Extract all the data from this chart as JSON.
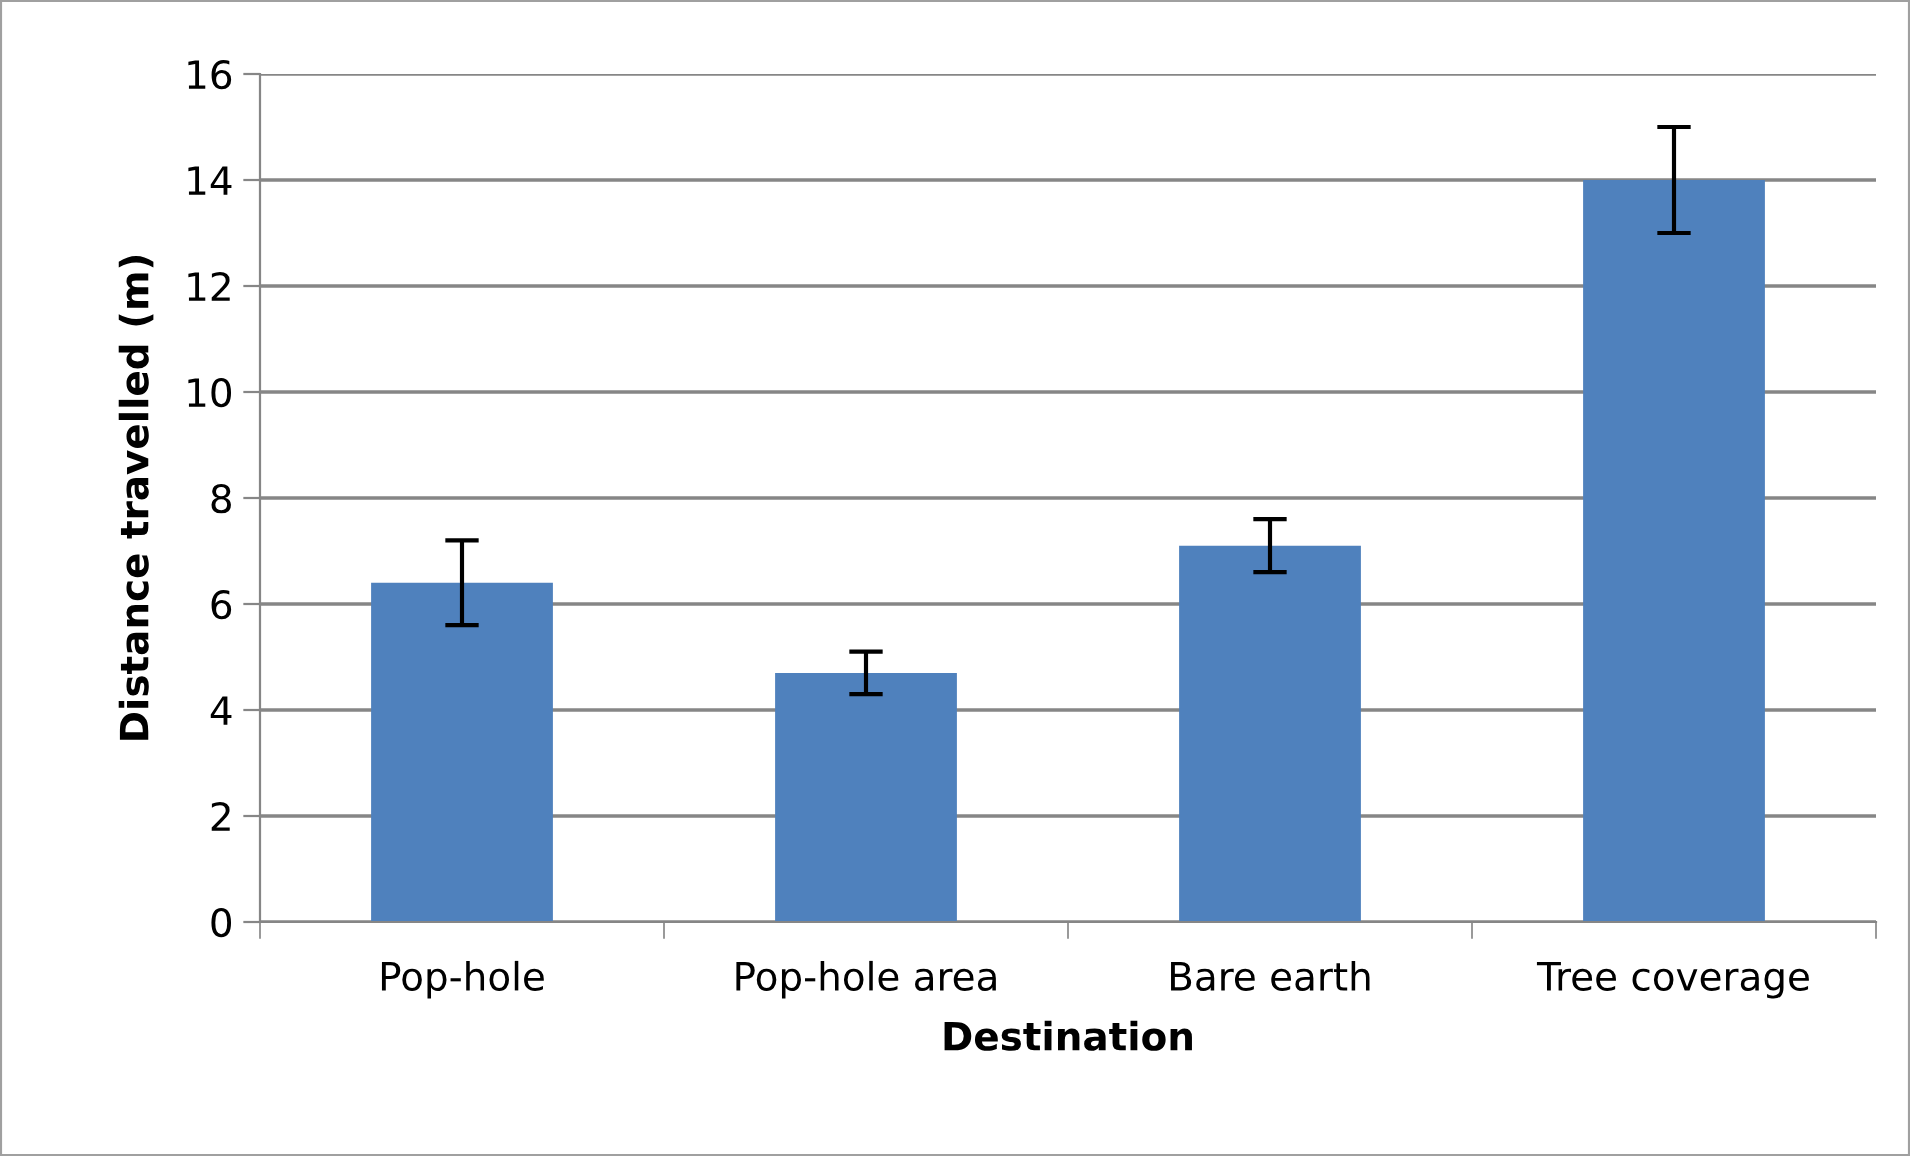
{
  "chart_data": {
    "type": "bar",
    "xlabel": "Destination",
    "ylabel": "Distance travelled (m)",
    "categories": [
      "Pop-hole",
      "Pop-hole area",
      "Bare earth",
      "Tree coverage"
    ],
    "values": [
      6.4,
      4.7,
      7.1,
      14.0
    ],
    "errors": [
      0.8,
      0.4,
      0.5,
      1.0
    ],
    "color": "#4f81bd",
    "ylim": [
      0,
      16
    ],
    "yticks": [
      0,
      2,
      4,
      6,
      8,
      10,
      12,
      14,
      16
    ],
    "grid": "y",
    "legend": false
  }
}
